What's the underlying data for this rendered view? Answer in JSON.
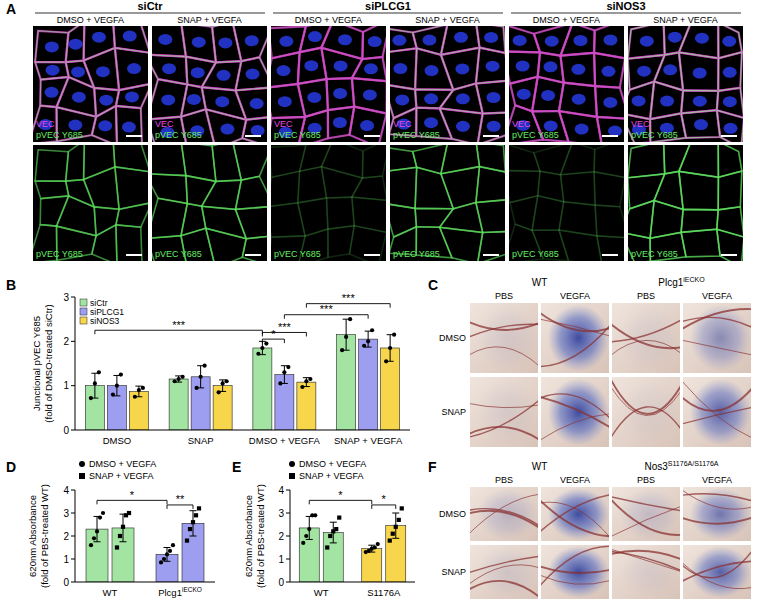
{
  "panels": [
    "A",
    "B",
    "C",
    "D",
    "E",
    "F"
  ],
  "images": {
    "A": {
      "groups": [
        "siCtr",
        "siPLCG1",
        "siNOS3"
      ],
      "conditions": [
        "DMSO + VEGFA",
        "SNAP + VEGFA"
      ],
      "merge_labels": [
        "VEC",
        "pVEC Y685"
      ],
      "single_label": "pVEC Y685"
    },
    "C": {
      "groups": [
        {
          "text": "WT"
        },
        {
          "text": "Plcg1",
          "sup": "iECKO"
        }
      ],
      "columns": [
        "PBS",
        "VEGFA"
      ],
      "rows": [
        "DMSO",
        "SNAP"
      ]
    },
    "F": {
      "groups": [
        {
          "text": "WT"
        },
        {
          "text": "Nos3",
          "sup": "S1176A/S1176A"
        }
      ],
      "columns": [
        "PBS",
        "VEGFA"
      ],
      "rows": [
        "DMSO",
        "SNAP"
      ]
    }
  },
  "chart_data": [
    {
      "type": "bar",
      "categories": [
        "DMSO",
        "SNAP",
        "DMSO + VEGFA",
        "SNAP + VEGFA"
      ],
      "ylabel": [
        "Junctional pVEC Y685",
        "(fold of DMSO-treated siCtr)"
      ],
      "ylim": [
        0,
        3
      ],
      "yticks": [
        0,
        1,
        2,
        3
      ],
      "legend": "top-left",
      "series": [
        {
          "name": "siCtr",
          "color": "#a3e4a3",
          "marker": "circle",
          "values": [
            1.0,
            1.15,
            1.85,
            2.15
          ],
          "errors": [
            0.28,
            0.07,
            0.15,
            0.35
          ],
          "points": [
            [
              0.72,
              1.05,
              1.3
            ],
            [
              1.1,
              1.15,
              1.2
            ],
            [
              1.72,
              1.85,
              1.95
            ],
            [
              1.8,
              2.1,
              2.5
            ]
          ]
        },
        {
          "name": "siPLCG1",
          "color": "#9e9ef0",
          "marker": "circle",
          "values": [
            1.0,
            1.2,
            1.25,
            2.05
          ],
          "errors": [
            0.23,
            0.25,
            0.2,
            0.18
          ],
          "points": [
            [
              0.8,
              1.0,
              1.25
            ],
            [
              0.95,
              1.2,
              1.45
            ],
            [
              1.05,
              1.3,
              1.42
            ],
            [
              1.9,
              2.0,
              2.25
            ]
          ]
        },
        {
          "name": "siNOS3",
          "color": "#f7d64c",
          "marker": "circle",
          "values": [
            0.87,
            1.0,
            1.08,
            1.85
          ],
          "errors": [
            0.12,
            0.13,
            0.1,
            0.3
          ],
          "points": [
            [
              0.75,
              0.9,
              0.95
            ],
            [
              0.85,
              1.05,
              1.1
            ],
            [
              0.97,
              1.1,
              1.15
            ],
            [
              1.55,
              1.85,
              2.15
            ]
          ]
        }
      ],
      "annotations": [
        {
          "from": [
            0,
            0
          ],
          "to": [
            2,
            0
          ],
          "y": 2.25,
          "label": "***"
        },
        {
          "from": [
            2,
            0
          ],
          "to": [
            2,
            1
          ],
          "y": 2.05,
          "label": "*"
        },
        {
          "from": [
            2,
            0
          ],
          "to": [
            2,
            2
          ],
          "y": 2.2,
          "label": "***"
        },
        {
          "from": [
            2,
            1
          ],
          "to": [
            3,
            1
          ],
          "y": 2.6,
          "label": "***"
        },
        {
          "from": [
            2,
            2
          ],
          "to": [
            3,
            2
          ],
          "y": 2.85,
          "label": "***"
        }
      ]
    },
    {
      "type": "bar",
      "categories": [
        "WT",
        "Plcg1"
      ],
      "category_superscripts": [
        null,
        "iECKO"
      ],
      "ylabel": [
        "620nm Absorbance",
        "(fold of PBS-treated WT)"
      ],
      "ylim": [
        0,
        4
      ],
      "yticks": [
        0,
        1,
        2,
        3,
        4
      ],
      "legend": "top",
      "series": [
        {
          "name": "DMSO + VEGFA",
          "marker": "circle",
          "colors": [
            "#a3e4a3",
            "#9e9ef0"
          ],
          "values": [
            2.3,
            1.2
          ],
          "errors": [
            0.55,
            0.3
          ],
          "points": [
            [
              1.6,
              1.9,
              2.2,
              2.8,
              3.0
            ],
            [
              0.85,
              1.0,
              1.2,
              1.35,
              1.6
            ]
          ]
        },
        {
          "name": "SNAP + VEGFA",
          "marker": "square",
          "colors": [
            "#a3e4a3",
            "#9e9ef0"
          ],
          "values": [
            2.35,
            2.55
          ],
          "errors": [
            0.6,
            0.55
          ],
          "points": [
            [
              1.5,
              2.0,
              2.4,
              2.9,
              3.0
            ],
            [
              1.8,
              2.3,
              2.6,
              2.9,
              3.2
            ]
          ]
        }
      ],
      "annotations": [
        {
          "from": [
            0,
            0
          ],
          "to": [
            1,
            0
          ],
          "y": 3.55,
          "label": "*"
        },
        {
          "from": [
            1,
            0
          ],
          "to": [
            1,
            1
          ],
          "y": 3.35,
          "label": "**"
        }
      ]
    },
    {
      "type": "bar",
      "categories": [
        "WT",
        "S1176A"
      ],
      "ylabel": [
        "620nm Absorbance",
        "(fold of PBS-treated WT)"
      ],
      "ylim": [
        0,
        4
      ],
      "yticks": [
        0,
        1,
        2,
        3,
        4
      ],
      "legend": "top",
      "series": [
        {
          "name": "DMSO + VEGFA",
          "marker": "circle",
          "colors": [
            "#a3e4a3",
            "#f7d64c"
          ],
          "values": [
            2.35,
            1.45
          ],
          "errors": [
            0.5,
            0.15
          ],
          "points": [
            [
              1.7,
              2.0,
              2.3,
              2.9,
              2.9
            ],
            [
              1.3,
              1.35,
              1.45,
              1.5,
              1.65
            ]
          ]
        },
        {
          "name": "SNAP + VEGFA",
          "marker": "square",
          "colors": [
            "#a3e4a3",
            "#f7d64c"
          ],
          "values": [
            2.15,
            2.45
          ],
          "errors": [
            0.45,
            0.55
          ],
          "points": [
            [
              1.5,
              2.0,
              2.2,
              2.3,
              2.8
            ],
            [
              1.8,
              2.1,
              2.4,
              2.7,
              3.2
            ]
          ]
        }
      ],
      "annotations": [
        {
          "from": [
            0,
            0
          ],
          "to": [
            1,
            0
          ],
          "y": 3.55,
          "label": "*"
        },
        {
          "from": [
            1,
            0
          ],
          "to": [
            1,
            1
          ],
          "y": 3.35,
          "label": "*"
        }
      ]
    }
  ]
}
